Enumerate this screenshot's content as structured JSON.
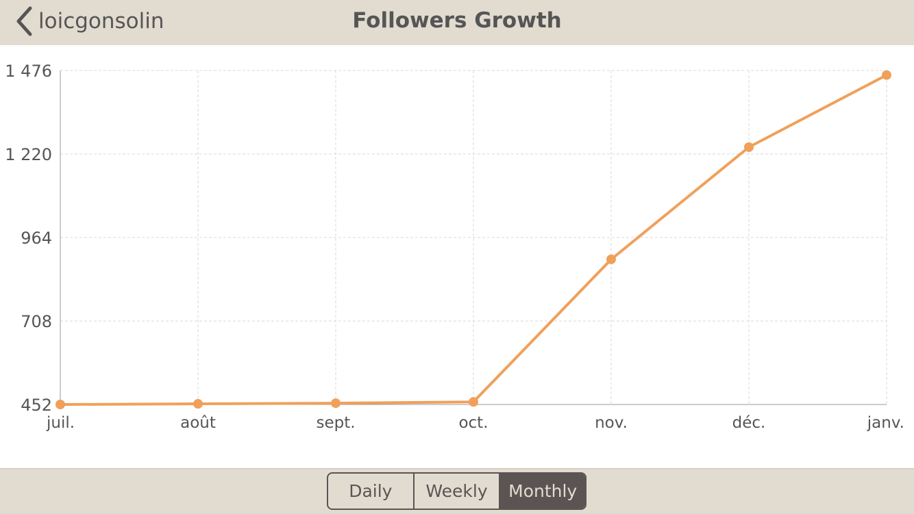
{
  "header": {
    "back_label": "loicgonsolin",
    "title": "Followers Growth"
  },
  "segments": [
    {
      "label": "Daily",
      "active": false
    },
    {
      "label": "Weekly",
      "active": false
    },
    {
      "label": "Monthly",
      "active": true
    }
  ],
  "colors": {
    "line": "#f0a05a",
    "grid": "#d8d8d8",
    "text": "#555555"
  },
  "chart_data": {
    "type": "line",
    "title": "Followers Growth",
    "categories": [
      "juil.",
      "août",
      "sept.",
      "oct.",
      "nov.",
      "déc.",
      "janv."
    ],
    "series": [
      {
        "name": "Followers",
        "values": [
          452,
          454,
          456,
          460,
          897,
          1241,
          1462
        ]
      }
    ],
    "yticks": [
      452,
      708,
      964,
      1220,
      1476
    ],
    "ytick_labels": [
      "452",
      "708",
      "964",
      "1 220",
      "1 476"
    ],
    "ylim": [
      452,
      1476
    ],
    "grid": true,
    "xlabel": "",
    "ylabel": ""
  }
}
